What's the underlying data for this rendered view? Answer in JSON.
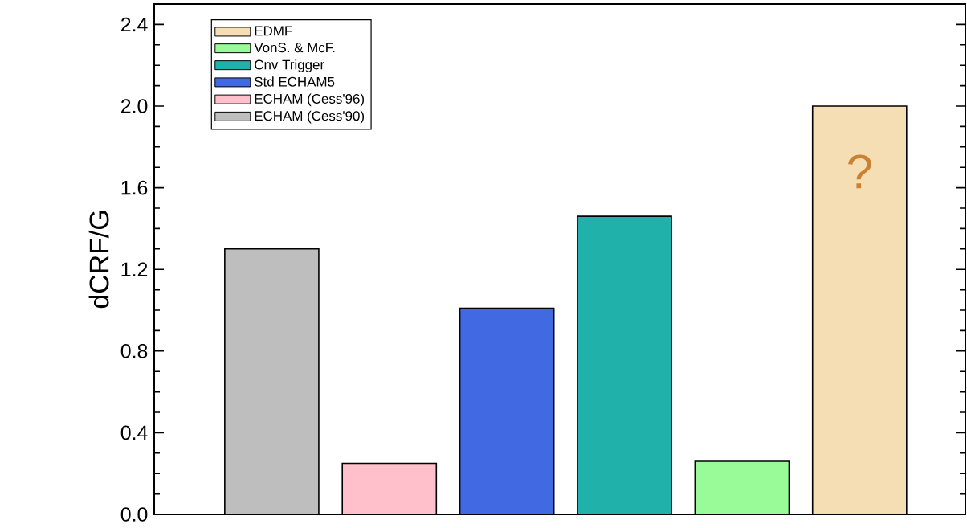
{
  "chart_data": {
    "type": "bar",
    "ylabel": "dCRF/G",
    "categories": [
      null,
      null,
      null,
      null,
      null,
      null
    ],
    "series": [
      {
        "name": "ECHAM (Cess'90)",
        "color": "#bebebe",
        "values": [
          1.3,
          null,
          null,
          null,
          null,
          null
        ]
      },
      {
        "name": "ECHAM (Cess'96)",
        "color": "#ffc0cb",
        "values": [
          null,
          0.25,
          null,
          null,
          null,
          null
        ]
      },
      {
        "name": "Std ECHAM5",
        "color": "#4169e1",
        "values": [
          null,
          null,
          1.01,
          null,
          null,
          null
        ]
      },
      {
        "name": "Cnv Trigger",
        "color": "#20b2aa",
        "values": [
          null,
          null,
          null,
          1.46,
          null,
          null
        ]
      },
      {
        "name": "VonS. & McF.",
        "color": "#98fb98",
        "values": [
          null,
          null,
          null,
          null,
          0.26,
          null
        ]
      },
      {
        "name": "EDMF",
        "color": "#f5deb3",
        "values": [
          null,
          null,
          null,
          null,
          null,
          2.0
        ]
      }
    ],
    "stacked": true,
    "ylim": [
      0,
      2.5
    ],
    "yticks": [
      {
        "value": 0,
        "label": "0.0"
      },
      {
        "value": 0.4,
        "label": "0.4"
      },
      {
        "value": 0.8,
        "label": "0.8"
      },
      {
        "value": 1.2,
        "label": "1.2"
      },
      {
        "value": 1.6,
        "label": "1.6"
      },
      {
        "value": 2.0,
        "label": "2.0"
      },
      {
        "value": 2.4,
        "label": "2.4"
      }
    ],
    "legend": "top left",
    "annotations": [
      "?"
    ]
  }
}
